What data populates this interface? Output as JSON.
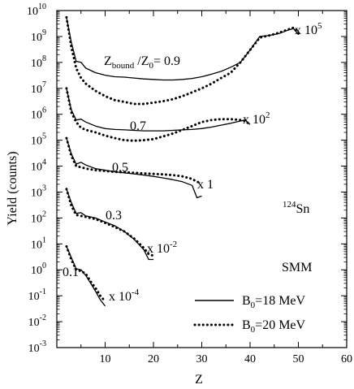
{
  "chart_data": {
    "type": "line",
    "xlabel": "Z",
    "ylabel": "Yield (counts)",
    "xlim": [
      0,
      60
    ],
    "ylim_log10": [
      -3,
      10
    ],
    "y_scale": "log",
    "x_ticks": [
      10,
      20,
      30,
      40,
      50,
      60
    ],
    "x_tick_labels": [
      "10",
      "20",
      "30",
      "40",
      "50",
      "60"
    ],
    "y_tick_exponents": [
      -3,
      -2,
      -1,
      0,
      1,
      2,
      3,
      4,
      5,
      6,
      7,
      8,
      9,
      10
    ],
    "y_tick_base": "10",
    "grid": false,
    "legend_position": "bottom-right",
    "legend": [
      {
        "label_main": "B",
        "label_sub": "0",
        "label_rest": "=18 MeV",
        "style": "solid"
      },
      {
        "label_main": "B",
        "label_sub": "0",
        "label_rest": "=20 MeV",
        "style": "dotted"
      }
    ],
    "annotations": {
      "ratio_main": "Z",
      "ratio_sub1": "bound",
      "ratio_mid": " /Z",
      "ratio_sub2": "0",
      "ratio_rest": "= 0.9",
      "ratio_07": "0.7",
      "ratio_05": "0.5",
      "ratio_03": "0.3",
      "ratio_01": "0.1",
      "nucleus_sup": "124",
      "nucleus": "Sn",
      "model": "SMM",
      "scale_09": "x 10",
      "scale_09_exp": "5",
      "scale_07": "x 10",
      "scale_07_exp": "2",
      "scale_05": "x 1",
      "scale_03": "x 10",
      "scale_03_exp": "-2",
      "scale_01": "x 10",
      "scale_01_exp": "-4"
    },
    "series": [
      {
        "group": "0.9",
        "style": "solid",
        "x": [
          2,
          3,
          4,
          5,
          6,
          8,
          10,
          12,
          14,
          16,
          18,
          20,
          22,
          24,
          26,
          28,
          30,
          32,
          34,
          36,
          38,
          40,
          42,
          44,
          46,
          48,
          49,
          50
        ],
        "y": [
          5500000000.0,
          600000000.0,
          110000000.0,
          100000000.0,
          60000000.0,
          40000000.0,
          32000000.0,
          28000000.0,
          27000000.0,
          25000000.0,
          23000000.0,
          22000000.0,
          21000000.0,
          21000000.0,
          22000000.0,
          24000000.0,
          28000000.0,
          35000000.0,
          45000000.0,
          65000000.0,
          100000000.0,
          300000000.0,
          1000000000.0,
          1100000000.0,
          1300000000.0,
          1800000000.0,
          2000000000.0,
          1200000000.0
        ]
      },
      {
        "group": "0.9",
        "style": "dotted",
        "x": [
          2,
          3,
          4,
          5,
          6,
          8,
          10,
          12,
          14,
          16,
          18,
          20,
          22,
          24,
          26,
          28,
          30,
          32,
          34,
          36,
          38,
          40,
          42,
          44,
          46,
          48,
          49,
          50
        ],
        "y": [
          5500000000.0,
          400000000.0,
          60000000.0,
          25000000.0,
          15000000.0,
          8000000.0,
          5000000.0,
          3500000.0,
          3000000.0,
          2500000.0,
          2500000.0,
          2800000.0,
          3200000.0,
          3800000.0,
          5000000.0,
          7000000.0,
          10000000.0,
          15000000.0,
          25000000.0,
          40000000.0,
          100000000.0,
          300000000.0,
          900000000.0,
          1100000000.0,
          1400000000.0,
          1900000000.0,
          2200000000.0,
          1300000000.0
        ]
      },
      {
        "group": "0.7",
        "style": "solid",
        "x": [
          2,
          3,
          4,
          5,
          6,
          8,
          10,
          12,
          14,
          16,
          18,
          20,
          22,
          24,
          26,
          28,
          30,
          32,
          34,
          36,
          38,
          39,
          40
        ],
        "y": [
          10000000.0,
          1500000.0,
          600000.0,
          650000.0,
          500000.0,
          350000.0,
          280000.0,
          260000.0,
          250000.0,
          240000.0,
          230000.0,
          230000.0,
          230000.0,
          240000.0,
          250000.0,
          260000.0,
          280000.0,
          320000.0,
          380000.0,
          450000.0,
          550000.0,
          600000.0,
          400000.0
        ]
      },
      {
        "group": "0.7",
        "style": "dotted",
        "x": [
          2,
          3,
          4,
          5,
          6,
          8,
          10,
          12,
          14,
          16,
          18,
          20,
          22,
          24,
          26,
          28,
          30,
          32,
          34,
          36,
          38,
          39,
          40
        ],
        "y": [
          10000000.0,
          1200000.0,
          500000.0,
          300000.0,
          250000.0,
          200000.0,
          150000.0,
          120000.0,
          100000.0,
          95000.0,
          100000.0,
          110000.0,
          140000.0,
          180000.0,
          250000.0,
          350000.0,
          500000.0,
          600000.0,
          650000.0,
          650000.0,
          600000.0,
          550000.0,
          400000.0
        ]
      },
      {
        "group": "0.5",
        "style": "solid",
        "x": [
          2,
          3,
          4,
          5,
          6,
          8,
          10,
          12,
          14,
          16,
          18,
          20,
          22,
          24,
          26,
          28,
          29,
          30
        ],
        "y": [
          120000.0,
          30000.0,
          12000.0,
          14000.0,
          11000.0,
          8000.0,
          7000.0,
          6000.0,
          5500.0,
          5000.0,
          4500.0,
          4000.0,
          3500.0,
          3000.0,
          2500.0,
          1800.0,
          600.0,
          700.0
        ]
      },
      {
        "group": "0.5",
        "style": "dotted",
        "x": [
          2,
          3,
          4,
          5,
          6,
          8,
          10,
          12,
          14,
          16,
          18,
          20,
          22,
          24,
          26,
          28,
          29,
          30
        ],
        "y": [
          120000.0,
          25000.0,
          10000.0,
          9000.0,
          8000.0,
          7000.0,
          6500.0,
          6000.0,
          5800.0,
          5500.0,
          5200.0,
          5000.0,
          4800.0,
          4500.0,
          4000.0,
          3200.0,
          2500.0,
          2200.0
        ]
      },
      {
        "group": "0.3",
        "style": "solid",
        "x": [
          2,
          3,
          4,
          5,
          6,
          8,
          10,
          12,
          14,
          16,
          18,
          19,
          20
        ],
        "y": [
          1300.0,
          400.0,
          150.0,
          160.0,
          120.0,
          100.0,
          70.0,
          50.0,
          30.0,
          15.0,
          6,
          2.5,
          2.5
        ]
      },
      {
        "group": "0.3",
        "style": "dotted",
        "x": [
          2,
          3,
          4,
          5,
          6,
          8,
          10,
          12,
          14,
          16,
          18,
          19,
          20
        ],
        "y": [
          1300.0,
          300.0,
          130.0,
          120.0,
          110.0,
          90.0,
          65.0,
          45.0,
          30.0,
          16.0,
          7,
          4,
          3.5
        ]
      },
      {
        "group": "0.1",
        "style": "solid",
        "x": [
          2,
          3,
          4,
          5,
          6,
          7,
          8,
          9,
          10
        ],
        "y": [
          8,
          3,
          1.1,
          1.0,
          0.6,
          0.3,
          0.15,
          0.07,
          0.04
        ]
      },
      {
        "group": "0.1",
        "style": "dotted",
        "x": [
          2,
          3,
          4,
          5,
          6,
          7,
          8,
          9,
          10
        ],
        "y": [
          8,
          2.5,
          1.0,
          0.9,
          0.7,
          0.35,
          0.2,
          0.1,
          0.06
        ]
      }
    ]
  }
}
